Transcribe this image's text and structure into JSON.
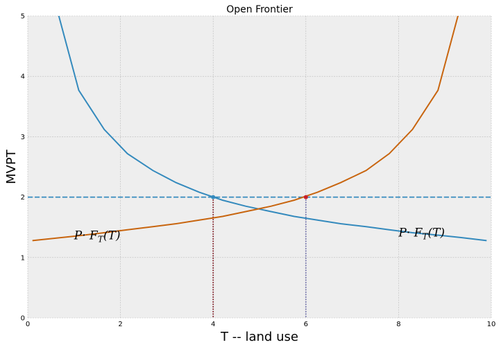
{
  "chart_data": {
    "type": "line",
    "title": "Open Frontier",
    "xlabel": "T -- land use",
    "ylabel": "MVPT",
    "xlim": [
      0,
      10
    ],
    "ylim": [
      0,
      5
    ],
    "xticks": [
      0,
      2,
      4,
      6,
      8,
      10
    ],
    "yticks": [
      0,
      1,
      2,
      3,
      4,
      5
    ],
    "grid": true,
    "series": [
      {
        "color": "#348ABD",
        "x": [
          0.1,
          0.6,
          1.1,
          1.65,
          2.15,
          2.7,
          3.2,
          3.7,
          4.2,
          4.7,
          5.25,
          5.75,
          6.25,
          6.75,
          7.3,
          7.8,
          8.3,
          8.85,
          9.35,
          9.9
        ],
        "y": [
          8.0,
          5.2,
          3.77,
          3.12,
          2.72,
          2.44,
          2.24,
          2.08,
          1.95,
          1.85,
          1.76,
          1.68,
          1.62,
          1.56,
          1.51,
          1.46,
          1.41,
          1.37,
          1.33,
          1.28
        ]
      },
      {
        "color": "#C8650F",
        "x": [
          0.1,
          0.6,
          1.1,
          1.65,
          2.15,
          2.7,
          3.2,
          3.7,
          4.2,
          4.7,
          5.25,
          5.75,
          6.25,
          6.75,
          7.3,
          7.8,
          8.3,
          8.85,
          9.35
        ],
        "y": [
          1.28,
          1.32,
          1.36,
          1.41,
          1.46,
          1.51,
          1.56,
          1.62,
          1.68,
          1.76,
          1.85,
          1.95,
          2.08,
          2.24,
          2.44,
          2.72,
          3.12,
          3.77,
          5.2
        ]
      }
    ],
    "reference_lines": [
      {
        "orientation": "horizontal",
        "value": 2,
        "style": "dashed",
        "color": "#348ABD"
      },
      {
        "orientation": "vertical",
        "value": 4,
        "y_to": 2,
        "style": "dotted",
        "color": "#7A0A14"
      },
      {
        "orientation": "vertical",
        "value": 6,
        "y_to": 2,
        "style": "dotted",
        "color": "#6A6AAA"
      }
    ],
    "points": [
      {
        "x": 4,
        "y": 2,
        "color": "#348ABD"
      },
      {
        "x": 6,
        "y": 2,
        "color": "#C8202A"
      }
    ],
    "annotations": [
      {
        "text": "P· F_T(T)",
        "x": 1.0,
        "y": 1.3
      },
      {
        "text": "P· F_T(T)",
        "x": 8.0,
        "y": 1.35
      }
    ]
  }
}
